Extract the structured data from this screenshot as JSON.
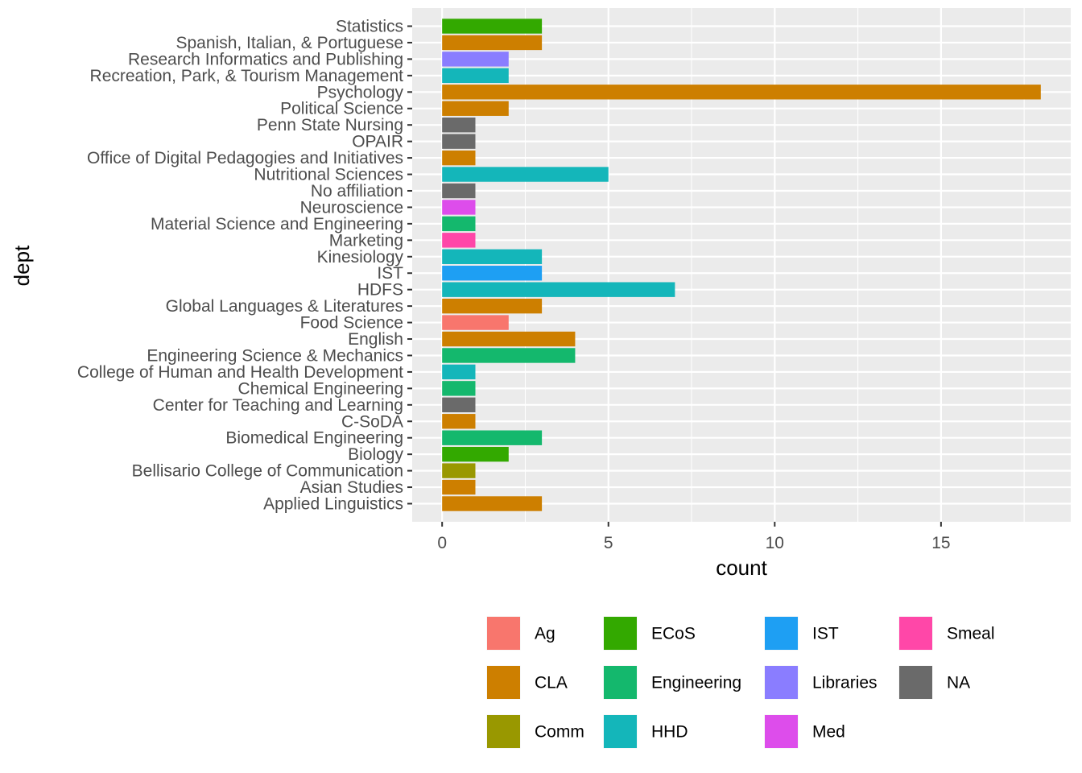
{
  "chart_data": {
    "type": "bar",
    "orientation": "horizontal",
    "xlabel": "count",
    "ylabel": "dept",
    "xlim": [
      -0.9,
      18.9
    ],
    "x_ticks": [
      0,
      5,
      10,
      15
    ],
    "grid": true,
    "legend_position": "bottom",
    "bars": [
      {
        "dept": "Statistics",
        "count": 3,
        "group": "ECoS"
      },
      {
        "dept": "Spanish, Italian, & Portuguese",
        "count": 3,
        "group": "CLA"
      },
      {
        "dept": "Research Informatics and Publishing",
        "count": 2,
        "group": "Libraries"
      },
      {
        "dept": "Recreation, Park, & Tourism Management",
        "count": 2,
        "group": "HHD"
      },
      {
        "dept": "Psychology",
        "count": 18,
        "group": "CLA"
      },
      {
        "dept": "Political Science",
        "count": 2,
        "group": "CLA"
      },
      {
        "dept": "Penn State Nursing",
        "count": 1,
        "group": "NA"
      },
      {
        "dept": "OPAIR",
        "count": 1,
        "group": "NA"
      },
      {
        "dept": "Office of Digital Pedagogies and Initiatives",
        "count": 1,
        "group": "CLA"
      },
      {
        "dept": "Nutritional Sciences",
        "count": 5,
        "group": "HHD"
      },
      {
        "dept": "No affiliation",
        "count": 1,
        "group": "NA"
      },
      {
        "dept": "Neuroscience",
        "count": 1,
        "group": "Med"
      },
      {
        "dept": "Material Science and Engineering",
        "count": 1,
        "group": "Engineering"
      },
      {
        "dept": "Marketing",
        "count": 1,
        "group": "Smeal"
      },
      {
        "dept": "Kinesiology",
        "count": 3,
        "group": "HHD"
      },
      {
        "dept": "IST",
        "count": 3,
        "group": "IST"
      },
      {
        "dept": "HDFS",
        "count": 7,
        "group": "HHD"
      },
      {
        "dept": "Global Languages & Literatures",
        "count": 3,
        "group": "CLA"
      },
      {
        "dept": "Food Science",
        "count": 2,
        "group": "Ag"
      },
      {
        "dept": "English",
        "count": 4,
        "group": "CLA"
      },
      {
        "dept": "Engineering Science & Mechanics",
        "count": 4,
        "group": "Engineering"
      },
      {
        "dept": "College of Human and Health Development",
        "count": 1,
        "group": "HHD"
      },
      {
        "dept": "Chemical Engineering",
        "count": 1,
        "group": "Engineering"
      },
      {
        "dept": "Center for Teaching and Learning",
        "count": 1,
        "group": "NA"
      },
      {
        "dept": "C-SoDA",
        "count": 1,
        "group": "CLA"
      },
      {
        "dept": "Biomedical Engineering",
        "count": 3,
        "group": "Engineering"
      },
      {
        "dept": "Biology",
        "count": 2,
        "group": "ECoS"
      },
      {
        "dept": "Bellisario College of Communication",
        "count": 1,
        "group": "Comm"
      },
      {
        "dept": "Asian Studies",
        "count": 1,
        "group": "CLA"
      },
      {
        "dept": "Applied Linguistics",
        "count": 3,
        "group": "CLA"
      }
    ],
    "legend": [
      {
        "name": "Ag",
        "color": "#F8766D"
      },
      {
        "name": "CLA",
        "color": "#CD7F00"
      },
      {
        "name": "Comm",
        "color": "#999800"
      },
      {
        "name": "ECoS",
        "color": "#33A900"
      },
      {
        "name": "Engineering",
        "color": "#14B86D"
      },
      {
        "name": "HHD",
        "color": "#14B6BA"
      },
      {
        "name": "IST",
        "color": "#1E9FF3"
      },
      {
        "name": "Libraries",
        "color": "#8A7DFF"
      },
      {
        "name": "Med",
        "color": "#DD4DEB"
      },
      {
        "name": "Smeal",
        "color": "#FF47A8"
      },
      {
        "name": "NA",
        "color": "#6A6A6A"
      }
    ]
  }
}
